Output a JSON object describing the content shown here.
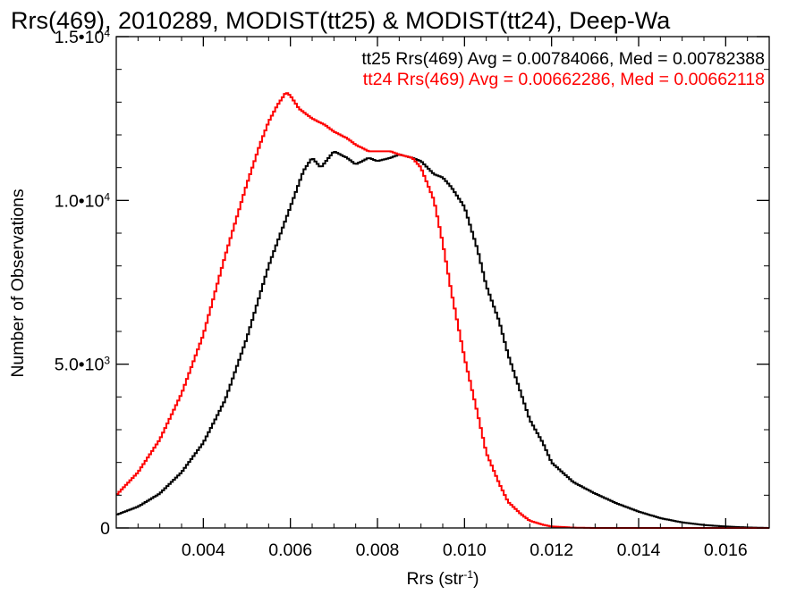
{
  "chart_data": {
    "type": "line",
    "title": "Rrs(469), 2010289, MODIST(tt25) & MODIST(tt24), Deep-Wa",
    "xlabel": "Rrs (str⁻¹)",
    "ylabel": "Number of Observations",
    "xlim": [
      0.002,
      0.017
    ],
    "ylim": [
      0,
      15000
    ],
    "x_ticks": [
      0.004,
      0.006,
      0.008,
      0.01,
      0.012,
      0.014,
      0.016
    ],
    "x_tick_labels": [
      "0.004",
      "0.006",
      "0.008",
      "0.010",
      "0.012",
      "0.014",
      "0.016"
    ],
    "y_ticks": [
      0,
      5000,
      10000,
      15000
    ],
    "y_tick_labels": [
      {
        "mantissa": "0",
        "exponent": ""
      },
      {
        "mantissa": "5.0•10",
        "exponent": "3"
      },
      {
        "mantissa": "1.0•10",
        "exponent": "4"
      },
      {
        "mantissa": "1.5•10",
        "exponent": "4"
      }
    ],
    "grid": false,
    "legend_position": "top-right",
    "annotations": [
      {
        "text": "tt25 Rrs(469) Avg = 0.00784066, Med = 0.00782388",
        "color": "#000000"
      },
      {
        "text": "tt24 Rrs(469) Avg = 0.00662286, Med = 0.00662118",
        "color": "#ff0000"
      }
    ],
    "series": [
      {
        "color": "#000000",
        "points": [
          [
            0.002,
            400
          ],
          [
            0.0025,
            650
          ],
          [
            0.003,
            1050
          ],
          [
            0.0035,
            1700
          ],
          [
            0.004,
            2600
          ],
          [
            0.0045,
            3900
          ],
          [
            0.005,
            5800
          ],
          [
            0.0055,
            8000
          ],
          [
            0.006,
            9800
          ],
          [
            0.0063,
            10900
          ],
          [
            0.0065,
            11300
          ],
          [
            0.0067,
            11000
          ],
          [
            0.007,
            11500
          ],
          [
            0.0073,
            11300
          ],
          [
            0.0075,
            11100
          ],
          [
            0.0078,
            11300
          ],
          [
            0.008,
            11200
          ],
          [
            0.0083,
            11300
          ],
          [
            0.0085,
            11400
          ],
          [
            0.0088,
            11300
          ],
          [
            0.009,
            11200
          ],
          [
            0.0093,
            10800
          ],
          [
            0.0095,
            10700
          ],
          [
            0.0097,
            10400
          ],
          [
            0.01,
            9800
          ],
          [
            0.0103,
            8500
          ],
          [
            0.0105,
            7400
          ],
          [
            0.0108,
            6300
          ],
          [
            0.011,
            5300
          ],
          [
            0.0113,
            4100
          ],
          [
            0.0115,
            3300
          ],
          [
            0.0118,
            2600
          ],
          [
            0.012,
            2000
          ],
          [
            0.0125,
            1400
          ],
          [
            0.013,
            1050
          ],
          [
            0.0135,
            750
          ],
          [
            0.014,
            500
          ],
          [
            0.0145,
            300
          ],
          [
            0.015,
            170
          ],
          [
            0.0155,
            90
          ],
          [
            0.016,
            45
          ],
          [
            0.0165,
            15
          ],
          [
            0.017,
            0
          ]
        ]
      },
      {
        "color": "#ff0000",
        "points": [
          [
            0.002,
            1000
          ],
          [
            0.0025,
            1700
          ],
          [
            0.003,
            2700
          ],
          [
            0.0035,
            4100
          ],
          [
            0.004,
            5900
          ],
          [
            0.0045,
            8300
          ],
          [
            0.005,
            10500
          ],
          [
            0.0053,
            11700
          ],
          [
            0.0055,
            12400
          ],
          [
            0.0057,
            12900
          ],
          [
            0.0059,
            13300
          ],
          [
            0.006,
            13200
          ],
          [
            0.0062,
            12800
          ],
          [
            0.0065,
            12500
          ],
          [
            0.0068,
            12300
          ],
          [
            0.007,
            12100
          ],
          [
            0.0073,
            11900
          ],
          [
            0.0075,
            11700
          ],
          [
            0.0078,
            11500
          ],
          [
            0.008,
            11500
          ],
          [
            0.0083,
            11500
          ],
          [
            0.0085,
            11400
          ],
          [
            0.0088,
            11300
          ],
          [
            0.009,
            11000
          ],
          [
            0.0093,
            10000
          ],
          [
            0.0095,
            8700
          ],
          [
            0.0097,
            7200
          ],
          [
            0.01,
            5200
          ],
          [
            0.0103,
            3500
          ],
          [
            0.0105,
            2300
          ],
          [
            0.0108,
            1350
          ],
          [
            0.011,
            800
          ],
          [
            0.0113,
            420
          ],
          [
            0.0115,
            220
          ],
          [
            0.0118,
            100
          ],
          [
            0.012,
            45
          ],
          [
            0.0125,
            10
          ],
          [
            0.013,
            0
          ],
          [
            0.017,
            0
          ]
        ]
      }
    ]
  }
}
